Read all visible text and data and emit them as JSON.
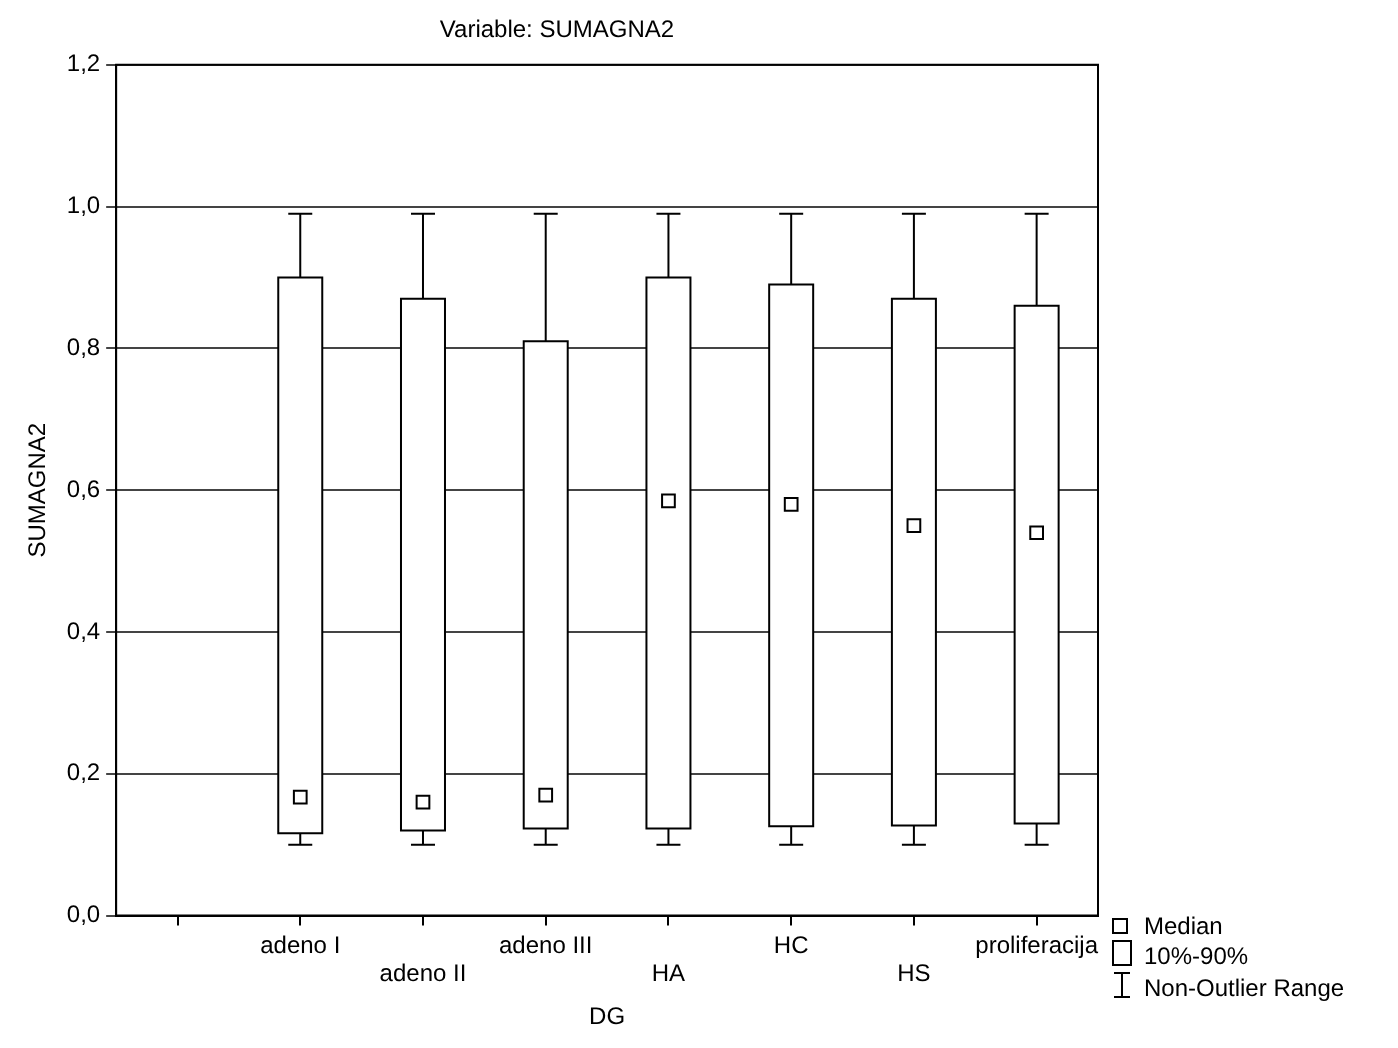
{
  "chart_data": {
    "type": "box",
    "title": "Variable: SUMAGNA2",
    "xlabel": "DG",
    "ylabel": "SUMAGNA2",
    "categories": [
      "adeno I",
      "adeno II",
      "adeno III",
      "HA",
      "HC",
      "HS",
      "proliferacija"
    ],
    "boxes": [
      {
        "low": 0.1,
        "q1": 0.116,
        "median": 0.167,
        "q3": 0.9,
        "high": 0.99
      },
      {
        "low": 0.1,
        "q1": 0.12,
        "median": 0.16,
        "q3": 0.87,
        "high": 0.99
      },
      {
        "low": 0.1,
        "q1": 0.123,
        "median": 0.17,
        "q3": 0.81,
        "high": 0.99
      },
      {
        "low": 0.1,
        "q1": 0.123,
        "median": 0.585,
        "q3": 0.9,
        "high": 0.99
      },
      {
        "low": 0.1,
        "q1": 0.126,
        "median": 0.58,
        "q3": 0.89,
        "high": 0.99
      },
      {
        "low": 0.1,
        "q1": 0.127,
        "median": 0.55,
        "q3": 0.87,
        "high": 0.99
      },
      {
        "low": 0.1,
        "q1": 0.13,
        "median": 0.54,
        "q3": 0.86,
        "high": 0.99
      }
    ],
    "ylim": [
      0,
      1.2
    ],
    "yticks": [
      {
        "value": 0,
        "label": "0,0"
      },
      {
        "value": 0.2,
        "label": "0,2"
      },
      {
        "value": 0.4,
        "label": "0,4"
      },
      {
        "value": 0.6,
        "label": "0,6"
      },
      {
        "value": 0.8,
        "label": "0,8"
      },
      {
        "value": 1.0,
        "label": "1,0"
      },
      {
        "value": 1.2,
        "label": "1,2"
      }
    ],
    "grid": "y",
    "marker": "square",
    "annotations": [
      "Median",
      "10%-90%",
      "Non-Outlier Range"
    ]
  }
}
